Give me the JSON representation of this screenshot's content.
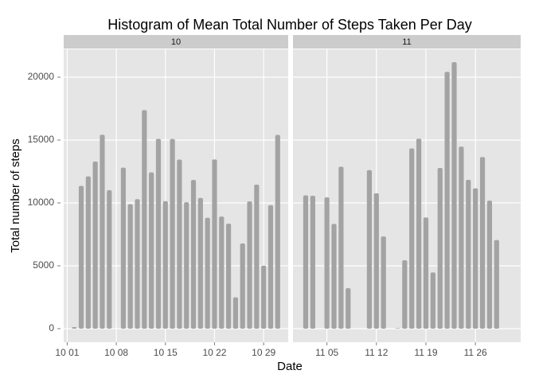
{
  "chart_data": {
    "type": "bar",
    "title": "Histogram of Mean Total Number of Steps Taken Per Day",
    "xlabel": "Date",
    "ylabel": "Total number of steps",
    "color": "#a3a3a3",
    "grid": true,
    "ylim": [
      -1076,
      22215
    ],
    "yticks": [
      0,
      5000,
      10000,
      15000,
      20000
    ],
    "facets": [
      {
        "label": "10",
        "xlim": [
          0.5,
          32.5
        ],
        "xticks": [
          {
            "value": 1,
            "label": "10 01"
          },
          {
            "value": 8,
            "label": "10 08"
          },
          {
            "value": 15,
            "label": "10 15"
          },
          {
            "value": 22,
            "label": "10 22"
          },
          {
            "value": 29,
            "label": "10 29"
          }
        ],
        "x": [
          1,
          2,
          3,
          4,
          5,
          6,
          7,
          8,
          9,
          10,
          11,
          12,
          13,
          14,
          15,
          16,
          17,
          18,
          19,
          20,
          21,
          22,
          23,
          24,
          25,
          26,
          27,
          28,
          29,
          30,
          31
        ],
        "values": [
          null,
          126,
          11352,
          12116,
          13294,
          15420,
          11015,
          null,
          12811,
          9900,
          10304,
          17382,
          12426,
          15098,
          10139,
          15084,
          13452,
          10056,
          11829,
          10395,
          8821,
          13460,
          8918,
          8355,
          2492,
          6778,
          10119,
          11458,
          5018,
          9819,
          15414
        ]
      },
      {
        "label": "11",
        "xlim": [
          0.2,
          32.4
        ],
        "xticks": [
          {
            "value": 5,
            "label": "11 05"
          },
          {
            "value": 12,
            "label": "11 12"
          },
          {
            "value": 19,
            "label": "11 19"
          },
          {
            "value": 26,
            "label": "11 26"
          }
        ],
        "x": [
          1,
          2,
          3,
          4,
          5,
          6,
          7,
          8,
          9,
          10,
          11,
          12,
          13,
          14,
          15,
          16,
          17,
          18,
          19,
          20,
          21,
          22,
          23,
          24,
          25,
          26,
          27,
          28,
          29,
          30
        ],
        "values": [
          null,
          10600,
          10571,
          null,
          10439,
          8334,
          12883,
          3219,
          null,
          null,
          12608,
          10765,
          7336,
          null,
          41,
          5441,
          14339,
          15110,
          8841,
          4472,
          12787,
          20427,
          21194,
          14478,
          11834,
          11162,
          13646,
          10183,
          7047,
          null
        ]
      }
    ]
  }
}
